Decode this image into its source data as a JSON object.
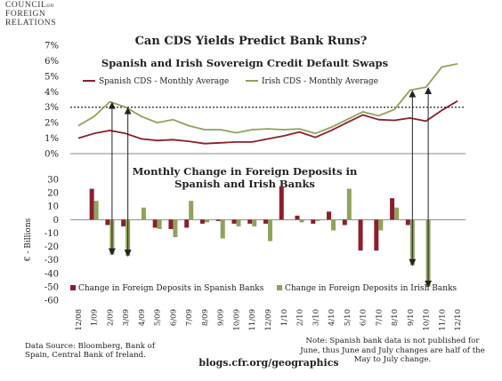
{
  "logo": {
    "line1": "COUNCIL",
    "line1_suffix": "on",
    "line2": "FOREIGN",
    "line3": "RELATIONS"
  },
  "title": "Can CDS Yields Predict Bank Runs?",
  "top_chart_title": "Spanish and Irish Sovereign Credit Default Swaps",
  "bottom_chart_title_line1": "Monthly Change in Foreign Deposits in",
  "bottom_chart_title_line2": "Spanish and Irish Banks",
  "source_text": "Data Source: Bloomberg, Bank of Spain, Central Bank of Ireland.",
  "note_text": "Note: Spanish bank data is not published for June, thus June and July changes are half of the May to July change.",
  "blog_url": "blogs.cfr.org/geographics",
  "colors": {
    "spain": "#8b1f2e",
    "ireland": "#8fa35a",
    "threshold": "#222222",
    "arrows": "#222222"
  },
  "chart_data": [
    {
      "type": "line",
      "title": "Spanish and Irish Sovereign Credit Default Swaps",
      "ylim": [
        0,
        7
      ],
      "yticks": [
        "0%",
        "1%",
        "2%",
        "3%",
        "4%",
        "5%",
        "6%",
        "7%"
      ],
      "threshold": 3,
      "legend": "top",
      "series": [
        {
          "name": "Spanish CDS - Monthly Average",
          "values": [
            1.0,
            1.3,
            1.5,
            1.3,
            0.95,
            0.85,
            0.9,
            0.8,
            0.65,
            0.7,
            0.75,
            0.75,
            0.95,
            1.15,
            1.4,
            1.05,
            1.5,
            2.0,
            2.5,
            2.2,
            2.15,
            2.3,
            2.1,
            2.8,
            3.4
          ]
        },
        {
          "name": "Irish CDS - Monthly Average",
          "values": [
            1.8,
            2.4,
            3.35,
            3.0,
            2.4,
            2.0,
            2.2,
            1.8,
            1.55,
            1.55,
            1.35,
            1.55,
            1.6,
            1.55,
            1.6,
            1.3,
            1.7,
            2.2,
            2.7,
            2.45,
            2.85,
            4.1,
            4.3,
            5.6,
            5.8
          ]
        }
      ]
    },
    {
      "type": "bar",
      "title": "Monthly Change in Foreign Deposits in Spanish and Irish Banks",
      "ylabel": "€ - Billions",
      "ylim": [
        -60,
        30
      ],
      "yticks": [
        "30",
        "20",
        "10",
        "0",
        "-10",
        "-20",
        "-30",
        "-40",
        "-50",
        "-60"
      ],
      "categories": [
        "12/08",
        "1/09",
        "2/09",
        "3/09",
        "4/09",
        "5/09",
        "6/09",
        "7/09",
        "8/09",
        "9/09",
        "10/09",
        "11/09",
        "12/09",
        "1/10",
        "2/10",
        "3/10",
        "4/10",
        "5/10",
        "6/10",
        "7/10",
        "8/10",
        "9/10",
        "10/10",
        "11/10",
        "12/10"
      ],
      "legend": "bottom",
      "series": [
        {
          "name": "Change in  Foreign Deposits  in Spanish Banks",
          "values": [
            null,
            23,
            -4,
            -5,
            0,
            -6,
            -7,
            -6,
            -3,
            -1,
            -3,
            -3,
            -3,
            25,
            3,
            -3,
            6,
            -4,
            -23,
            -23,
            16,
            -4,
            0,
            null,
            null
          ]
        },
        {
          "name": "Change in  Foreign Deposits  in Irish Banks",
          "values": [
            null,
            14,
            -26,
            -27,
            9,
            -7,
            -13,
            14,
            -2,
            -14,
            -5,
            -5,
            -16,
            0,
            -2,
            -1,
            -8,
            23,
            0,
            -8,
            9,
            -34,
            -50,
            null,
            null
          ]
        }
      ]
    }
  ]
}
